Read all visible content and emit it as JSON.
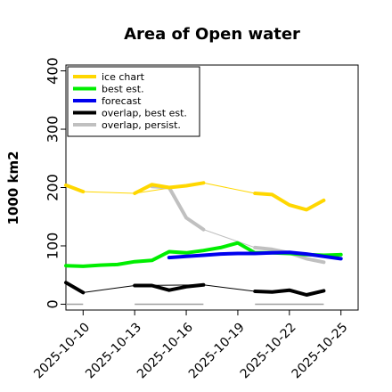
{
  "chart_data": {
    "type": "line",
    "title": "Area of Open water",
    "xlabel": "",
    "ylabel": "1000 km2",
    "ylim": [
      -10,
      410
    ],
    "xlim": [
      "2025-10-09",
      "2025-10-26"
    ],
    "y_ticks": [
      0,
      100,
      200,
      300,
      400
    ],
    "x_ticks": [
      "2025-10-10",
      "2025-10-13",
      "2025-10-16",
      "2025-10-19",
      "2025-10-22",
      "2025-10-25"
    ],
    "x_tick_colors": [
      "#000000",
      "#000000",
      "#228b22",
      "#000000",
      "#000000",
      "#000000"
    ],
    "grid": false,
    "legend_position": "top-left",
    "series": [
      {
        "name": "ice chart",
        "color": "#ffd700",
        "x": [
          "2025-10-09",
          "2025-10-10",
          "2025-10-13",
          "2025-10-14",
          "2025-10-15",
          "2025-10-16",
          "2025-10-17",
          "2025-10-20",
          "2025-10-21",
          "2025-10-22",
          "2025-10-23",
          "2025-10-24"
        ],
        "y": [
          204,
          193,
          190,
          205,
          200,
          203,
          208,
          190,
          188,
          170,
          162,
          178
        ],
        "segments": [
          [
            0,
            1
          ],
          [
            2,
            3,
            4,
            5,
            6
          ],
          [
            7,
            8,
            9,
            10,
            11
          ]
        ]
      },
      {
        "name": "best est.",
        "color": "#00ee00",
        "x": [
          "2025-10-09",
          "2025-10-10",
          "2025-10-11",
          "2025-10-12",
          "2025-10-13",
          "2025-10-14",
          "2025-10-15",
          "2025-10-16",
          "2025-10-17",
          "2025-10-18",
          "2025-10-19",
          "2025-10-20",
          "2025-10-21",
          "2025-10-22",
          "2025-10-23",
          "2025-10-24",
          "2025-10-25"
        ],
        "y": [
          66,
          65,
          67,
          68,
          73,
          75,
          90,
          88,
          92,
          97,
          105,
          88,
          88,
          87,
          85,
          84,
          85
        ]
      },
      {
        "name": "forecast",
        "color": "#0000ee",
        "x": [
          "2025-10-15",
          "2025-10-16",
          "2025-10-17",
          "2025-10-18",
          "2025-10-19",
          "2025-10-20",
          "2025-10-21",
          "2025-10-22",
          "2025-10-23",
          "2025-10-24",
          "2025-10-25"
        ],
        "y": [
          80,
          82,
          84,
          86,
          87,
          87,
          88,
          89,
          86,
          82,
          78
        ]
      },
      {
        "name": "overlap, best est.",
        "color": "#000000",
        "x": [
          "2025-10-09",
          "2025-10-10",
          "2025-10-13",
          "2025-10-14",
          "2025-10-15",
          "2025-10-16",
          "2025-10-17",
          "2025-10-20",
          "2025-10-21",
          "2025-10-22",
          "2025-10-23",
          "2025-10-24"
        ],
        "y": [
          37,
          20,
          32,
          32,
          24,
          30,
          33,
          22,
          21,
          24,
          16,
          23
        ],
        "segments": [
          [
            0,
            1
          ],
          [
            2,
            3,
            4,
            5,
            6
          ],
          [
            7,
            8,
            9,
            10,
            11
          ]
        ]
      },
      {
        "name": "overlap, persist.",
        "color": "#c0c0c0",
        "x": [
          "2025-10-14",
          "2025-10-15",
          "2025-10-16",
          "2025-10-17",
          "2025-10-20",
          "2025-10-21",
          "2025-10-22",
          "2025-10-23",
          "2025-10-24"
        ],
        "y": [
          202,
          200,
          148,
          128,
          97,
          94,
          88,
          78,
          72
        ],
        "segments": [
          [
            0,
            1,
            2,
            3
          ],
          [
            4,
            5,
            6,
            7,
            8
          ]
        ]
      }
    ],
    "zero_marks": [
      [
        "2025-10-09",
        "2025-10-10"
      ],
      [
        "2025-10-13",
        "2025-10-17"
      ],
      [
        "2025-10-20",
        "2025-10-24"
      ]
    ],
    "connector_lines": [
      {
        "color": "#ffd700",
        "x": [
          "2025-10-10",
          "2025-10-13",
          "2025-10-17",
          "2025-10-20"
        ],
        "y": [
          193,
          190,
          208,
          190
        ]
      },
      {
        "color": "#000000",
        "x": [
          "2025-10-10",
          "2025-10-13",
          "2025-10-17",
          "2025-10-20"
        ],
        "y": [
          20,
          32,
          33,
          22
        ]
      },
      {
        "color": "#c0c0c0",
        "x": [
          "2025-10-17",
          "2025-10-20"
        ],
        "y": [
          128,
          97
        ]
      }
    ]
  }
}
